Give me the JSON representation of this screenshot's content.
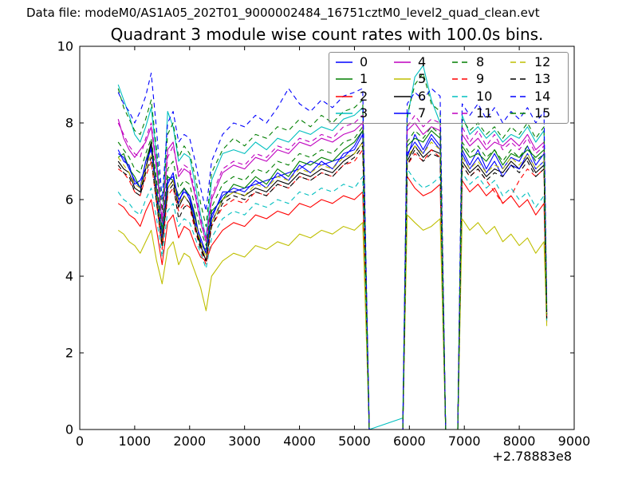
{
  "header": {
    "data_file_label": "Data file: modeM0/AS1A05_202T01_9000002484_16751cztM0_level2_quad_clean.evt"
  },
  "chart_data": {
    "type": "line",
    "title": "Quadrant 3 module wise count rates with 100.0s bins.",
    "xlabel": "",
    "ylabel": "",
    "xlim": [
      0,
      9000
    ],
    "ylim": [
      0,
      10
    ],
    "x_ticks": [
      0,
      1000,
      2000,
      3000,
      4000,
      5000,
      6000,
      7000,
      8000,
      9000
    ],
    "y_ticks": [
      0,
      2,
      4,
      6,
      8,
      10
    ],
    "x_offset": "+2.78883e8",
    "grid": false,
    "legend_position": "upper right",
    "legend_columns": 4,
    "axis_color": "#000000",
    "legend_border_color": "#8a8a8a",
    "x": [
      700,
      800,
      900,
      1000,
      1100,
      1200,
      1300,
      1400,
      1500,
      1600,
      1700,
      1800,
      1900,
      2000,
      2100,
      2200,
      2300,
      2400,
      2600,
      2800,
      3000,
      3200,
      3400,
      3600,
      3800,
      4000,
      4200,
      4400,
      4600,
      4800,
      5000,
      5150,
      5270,
      5880,
      5960,
      6100,
      6250,
      6400,
      6560,
      6660,
      6880,
      6960,
      7100,
      7250,
      7400,
      7550,
      7700,
      7850,
      8000,
      8150,
      8300,
      8450,
      8500
    ],
    "series": [
      {
        "name": "0",
        "color": "#0000ff",
        "style": "solid",
        "values": [
          7.3,
          7.0,
          6.9,
          6.4,
          6.5,
          6.8,
          7.4,
          6.1,
          5.0,
          6.4,
          6.7,
          5.9,
          6.3,
          6.0,
          5.4,
          5.0,
          4.6,
          5.5,
          6.2,
          6.2,
          6.3,
          6.4,
          6.5,
          6.6,
          6.7,
          6.8,
          7.0,
          6.9,
          7.0,
          7.1,
          7.4,
          7.8,
          0,
          0,
          7.1,
          7.7,
          7.3,
          7.7,
          7.4,
          0,
          0,
          7.3,
          6.9,
          7.3,
          6.8,
          7.2,
          6.8,
          7.1,
          7.0,
          7.4,
          6.9,
          7.2,
          3.0
        ]
      },
      {
        "name": "1",
        "color": "#007f00",
        "style": "solid",
        "values": [
          7.1,
          7.2,
          6.8,
          6.6,
          6.3,
          7.0,
          7.5,
          6.3,
          5.1,
          6.6,
          6.5,
          6.1,
          6.3,
          6.1,
          5.6,
          4.8,
          4.7,
          5.7,
          6.0,
          6.4,
          6.3,
          6.6,
          6.4,
          6.8,
          6.6,
          7.0,
          6.9,
          7.1,
          7.0,
          7.3,
          7.5,
          7.8,
          0,
          0,
          7.4,
          7.6,
          7.5,
          7.8,
          7.6,
          0,
          0,
          7.4,
          7.1,
          7.2,
          7.0,
          7.3,
          6.9,
          7.2,
          7.1,
          7.3,
          7.1,
          7.3,
          3.1
        ]
      },
      {
        "name": "2",
        "color": "#ff0000",
        "style": "solid",
        "values": [
          5.9,
          5.8,
          5.6,
          5.5,
          5.3,
          5.7,
          6.0,
          5.2,
          4.3,
          5.4,
          5.6,
          5.0,
          5.3,
          5.2,
          4.8,
          4.5,
          4.4,
          4.8,
          5.2,
          5.4,
          5.3,
          5.6,
          5.5,
          5.7,
          5.6,
          5.9,
          5.8,
          6.0,
          5.9,
          6.1,
          6.0,
          6.2,
          0,
          0,
          6.6,
          6.3,
          6.1,
          6.2,
          6.4,
          0,
          0,
          6.5,
          6.2,
          6.4,
          6.1,
          6.3,
          5.9,
          6.1,
          5.8,
          6.0,
          5.6,
          5.9,
          2.8
        ]
      },
      {
        "name": "3",
        "color": "#00bfbf",
        "style": "solid",
        "values": [
          9.0,
          8.6,
          8.2,
          7.7,
          7.5,
          7.9,
          8.4,
          7.1,
          5.3,
          8.3,
          7.9,
          7.0,
          7.2,
          7.1,
          6.4,
          5.6,
          5.0,
          6.5,
          7.2,
          7.3,
          7.2,
          7.5,
          7.3,
          7.6,
          7.5,
          7.8,
          7.7,
          7.9,
          7.8,
          8.1,
          8.2,
          8.4,
          0,
          0.3,
          8.1,
          9.2,
          9.5,
          8.6,
          8.0,
          0,
          0,
          8.2,
          7.7,
          7.9,
          7.6,
          7.8,
          7.5,
          7.7,
          7.6,
          7.9,
          7.5,
          7.8,
          3.2
        ]
      },
      {
        "name": "4",
        "color": "#bf00bf",
        "style": "solid",
        "values": [
          8.1,
          7.6,
          7.3,
          7.1,
          7.3,
          7.5,
          7.9,
          6.8,
          5.4,
          7.3,
          7.5,
          6.6,
          6.8,
          6.7,
          6.1,
          5.4,
          4.9,
          6.0,
          6.7,
          6.9,
          6.8,
          7.1,
          7.0,
          7.3,
          7.2,
          7.5,
          7.4,
          7.6,
          7.5,
          7.7,
          7.8,
          8.0,
          0,
          0,
          7.8,
          8.0,
          7.7,
          7.9,
          7.8,
          0,
          0,
          7.7,
          7.4,
          7.6,
          7.3,
          7.5,
          7.4,
          7.6,
          7.4,
          7.7,
          7.3,
          7.5,
          3.1
        ]
      },
      {
        "name": "5",
        "color": "#bfbf00",
        "style": "solid",
        "values": [
          5.2,
          5.1,
          4.9,
          4.8,
          4.6,
          4.9,
          5.2,
          4.4,
          3.8,
          4.7,
          4.9,
          4.3,
          4.6,
          4.5,
          4.1,
          3.7,
          3.1,
          4.0,
          4.4,
          4.6,
          4.5,
          4.8,
          4.7,
          4.9,
          4.8,
          5.1,
          5.0,
          5.2,
          5.1,
          5.3,
          5.2,
          5.4,
          0,
          0,
          5.6,
          5.4,
          5.2,
          5.3,
          5.5,
          0,
          0,
          5.5,
          5.2,
          5.4,
          5.1,
          5.3,
          4.9,
          5.1,
          4.8,
          5.0,
          4.6,
          4.9,
          2.7
        ]
      },
      {
        "name": "6",
        "color": "#000000",
        "style": "solid",
        "values": [
          7.0,
          6.8,
          6.7,
          6.3,
          6.2,
          6.8,
          7.5,
          6.0,
          4.8,
          6.3,
          6.5,
          5.8,
          6.1,
          5.9,
          5.3,
          4.8,
          4.4,
          5.4,
          6.0,
          6.2,
          6.1,
          6.3,
          6.2,
          6.5,
          6.4,
          6.7,
          6.6,
          6.8,
          6.7,
          7.0,
          7.2,
          7.5,
          0,
          0,
          7.0,
          7.4,
          7.1,
          7.3,
          7.2,
          0,
          0,
          7.0,
          6.7,
          6.9,
          6.6,
          6.8,
          6.7,
          7.0,
          6.8,
          7.1,
          6.7,
          6.9,
          2.9
        ]
      },
      {
        "name": "7",
        "color": "#0000ff",
        "style": "solid",
        "values": [
          7.2,
          7.1,
          6.8,
          6.5,
          6.3,
          7.0,
          7.3,
          6.2,
          5.0,
          6.5,
          6.6,
          6.0,
          6.2,
          6.1,
          5.5,
          4.9,
          4.6,
          5.6,
          6.1,
          6.3,
          6.2,
          6.5,
          6.3,
          6.7,
          6.5,
          6.9,
          6.7,
          7.0,
          6.8,
          7.2,
          7.3,
          7.7,
          0,
          0,
          7.2,
          7.5,
          7.2,
          7.6,
          7.3,
          0,
          0,
          7.2,
          6.8,
          7.1,
          6.7,
          7.0,
          6.6,
          6.9,
          6.8,
          7.2,
          6.8,
          7.0,
          3.0
        ]
      },
      {
        "name": "8",
        "color": "#007f00",
        "style": "dashed",
        "values": [
          8.9,
          8.4,
          8.1,
          7.8,
          7.7,
          8.1,
          8.6,
          7.3,
          5.7,
          7.7,
          8.0,
          7.1,
          7.4,
          7.2,
          6.6,
          5.9,
          5.3,
          6.7,
          7.3,
          7.6,
          7.4,
          7.7,
          7.6,
          7.9,
          7.8,
          8.1,
          7.9,
          8.2,
          8.0,
          8.3,
          8.4,
          8.6,
          0,
          0,
          8.2,
          9.0,
          9.3,
          8.5,
          8.3,
          0,
          0,
          8.1,
          7.8,
          8.0,
          7.7,
          7.9,
          7.6,
          7.9,
          7.7,
          8.0,
          7.6,
          7.9,
          3.2
        ]
      },
      {
        "name": "9",
        "color": "#ff0000",
        "style": "dashed",
        "values": [
          6.8,
          6.7,
          6.5,
          6.2,
          6.1,
          6.6,
          7.0,
          5.9,
          4.7,
          6.1,
          6.3,
          5.7,
          5.9,
          5.8,
          5.2,
          4.7,
          4.3,
          5.3,
          5.8,
          6.0,
          5.9,
          6.2,
          6.1,
          6.4,
          6.3,
          6.6,
          6.5,
          6.7,
          6.6,
          6.9,
          7.0,
          7.3,
          0,
          0,
          6.9,
          7.2,
          7.0,
          7.3,
          7.1,
          0,
          0,
          6.9,
          6.6,
          6.8,
          6.5,
          6.2,
          5.9,
          6.1,
          6.5,
          6.8,
          6.6,
          6.8,
          2.9
        ]
      },
      {
        "name": "10",
        "color": "#00bfbf",
        "style": "dashed",
        "values": [
          6.2,
          6.0,
          5.9,
          5.7,
          5.6,
          6.0,
          6.3,
          5.5,
          4.5,
          5.7,
          5.9,
          5.3,
          5.5,
          5.4,
          5.0,
          4.6,
          4.2,
          5.0,
          5.5,
          5.7,
          5.6,
          5.9,
          5.8,
          6.0,
          5.9,
          6.2,
          6.1,
          6.3,
          6.2,
          6.4,
          6.3,
          6.6,
          0,
          0,
          6.8,
          6.5,
          6.3,
          6.4,
          6.6,
          0,
          0,
          6.7,
          6.4,
          6.6,
          6.3,
          6.5,
          6.1,
          6.3,
          6.0,
          6.2,
          5.8,
          6.1,
          2.8
        ]
      },
      {
        "name": "11",
        "color": "#bf00bf",
        "style": "dashed",
        "values": [
          8.0,
          7.7,
          7.4,
          7.2,
          7.1,
          7.6,
          8.0,
          6.9,
          5.5,
          7.1,
          7.4,
          6.7,
          6.9,
          6.8,
          6.2,
          5.5,
          5.0,
          6.1,
          6.8,
          7.0,
          6.9,
          7.2,
          7.1,
          7.4,
          7.3,
          7.6,
          7.5,
          7.7,
          7.6,
          7.9,
          8.0,
          8.2,
          0,
          0,
          7.9,
          8.2,
          7.9,
          8.1,
          8.0,
          0,
          0,
          7.9,
          7.5,
          7.8,
          7.4,
          7.7,
          7.3,
          7.5,
          7.3,
          7.6,
          7.2,
          7.4,
          3.1
        ]
      },
      {
        "name": "12",
        "color": "#bfbf00",
        "style": "dashed",
        "values": [
          7.1,
          6.9,
          6.7,
          6.4,
          6.3,
          6.8,
          7.2,
          6.1,
          4.9,
          6.3,
          6.5,
          5.9,
          6.1,
          5.9,
          5.4,
          4.9,
          4.5,
          5.4,
          6.0,
          6.2,
          6.1,
          6.4,
          6.3,
          6.6,
          6.5,
          6.8,
          6.7,
          6.9,
          6.8,
          7.1,
          7.2,
          7.5,
          0,
          0,
          7.1,
          7.4,
          7.2,
          7.5,
          7.3,
          0,
          0,
          7.1,
          6.8,
          7.0,
          6.7,
          6.9,
          6.8,
          7.1,
          6.9,
          7.2,
          6.8,
          7.0,
          3.0
        ]
      },
      {
        "name": "13",
        "color": "#000000",
        "style": "dashed",
        "values": [
          6.9,
          6.7,
          6.6,
          6.2,
          6.1,
          6.7,
          7.1,
          5.9,
          4.8,
          6.2,
          6.4,
          5.5,
          5.8,
          5.9,
          5.3,
          4.7,
          4.4,
          5.3,
          5.9,
          6.1,
          6.0,
          6.2,
          6.1,
          6.4,
          6.3,
          6.6,
          6.5,
          6.7,
          6.6,
          6.9,
          7.1,
          7.4,
          0,
          0,
          6.9,
          7.3,
          7.0,
          7.2,
          7.1,
          0,
          0,
          6.9,
          6.6,
          6.8,
          6.5,
          6.7,
          6.6,
          6.9,
          6.7,
          7.0,
          6.6,
          6.8,
          2.9
        ]
      },
      {
        "name": "14",
        "color": "#0000ff",
        "style": "dashed",
        "values": [
          8.8,
          8.5,
          8.3,
          8.0,
          8.3,
          8.7,
          9.3,
          7.8,
          6.0,
          8.0,
          8.3,
          7.5,
          7.7,
          7.6,
          7.0,
          6.3,
          5.7,
          7.0,
          7.7,
          8.0,
          7.9,
          8.2,
          8.0,
          8.4,
          8.9,
          8.5,
          8.3,
          8.6,
          8.4,
          8.7,
          8.8,
          8.9,
          0,
          0,
          8.5,
          8.8,
          8.6,
          8.9,
          8.7,
          0,
          0,
          8.5,
          8.2,
          8.5,
          8.1,
          8.4,
          8.0,
          8.3,
          8.1,
          8.4,
          8.0,
          8.3,
          3.3
        ]
      },
      {
        "name": "15",
        "color": "#007f00",
        "style": "dashed",
        "values": [
          7.5,
          7.3,
          7.1,
          6.8,
          6.7,
          7.2,
          7.6,
          6.5,
          5.2,
          6.8,
          7.0,
          6.3,
          6.5,
          6.4,
          5.8,
          5.2,
          4.8,
          5.8,
          6.4,
          6.6,
          6.5,
          6.8,
          6.7,
          7.0,
          6.9,
          7.2,
          7.1,
          7.3,
          7.2,
          7.5,
          7.6,
          7.9,
          0,
          0,
          7.5,
          7.8,
          7.6,
          7.9,
          7.7,
          0,
          0,
          7.5,
          7.2,
          7.4,
          7.1,
          7.3,
          7.0,
          7.3,
          7.1,
          7.4,
          7.0,
          7.2,
          3.0
        ]
      }
    ]
  }
}
